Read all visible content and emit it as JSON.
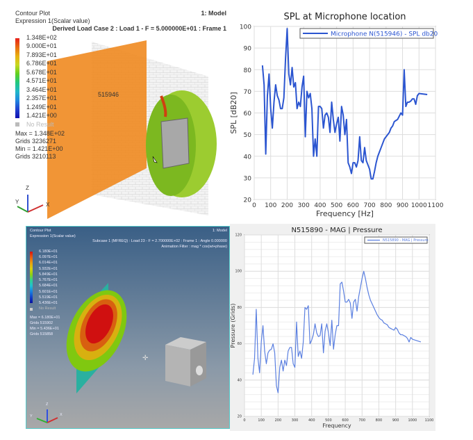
{
  "top_left": {
    "title": "Contour Plot",
    "model": "1: Model",
    "expression": "Expression 1(Scalar value)",
    "subcase": "Derived Load Case 2 : Load 1 - F = 5.000000E+01 : Frame 1",
    "legend": [
      "1.348E+02",
      "9.000E+01",
      "7.893E+01",
      "6.786E+01",
      "5.678E+01",
      "4.571E+01",
      "3.464E+01",
      "2.357E+01",
      "1.249E+01",
      "1.421E+00"
    ],
    "legend_colors": [
      "#e8201a",
      "#e86a10",
      "#e8b010",
      "#c8d820",
      "#60d020",
      "#20c880",
      "#20b8c8",
      "#2088e0",
      "#2040d0",
      "#1010b0"
    ],
    "no_result": "No Result",
    "max": "Max = 1.348E+02",
    "max_grid": "Grids 3236271",
    "min": "Min = 1.421E+00",
    "min_grid": "Grids 3210113",
    "node_label": "515946",
    "axes": {
      "z": "Z",
      "y": "Y",
      "x": "X"
    }
  },
  "bottom_left": {
    "title": "Contour Plot",
    "model": "1: Model",
    "expression": "Expression 1(Scalar value)",
    "subcase": "Subcase 1 (MFREQ) : Load 23 - F = 2.700000E+02 : Frame 1 : Angle 0.000000",
    "filter": "Animation Filter : mag * cos(wt+phase)",
    "legend": [
      "6.180E+01",
      "6.097E+01",
      "6.014E+01",
      "5.932E+01",
      "5.849E+01",
      "5.767E+01",
      "5.684E+01",
      "5.601E+01",
      "5.519E+01",
      "5.436E+01"
    ],
    "legend_colors": [
      "#d81010",
      "#e86010",
      "#e8a010",
      "#d8d010",
      "#90d010",
      "#30d090",
      "#20c0d0",
      "#1880e0",
      "#1040c8",
      "#0810a0"
    ],
    "no_result": "No Result",
    "max": "Max = 6.180E+01",
    "max_grid": "Grids 515902",
    "min": "Min = 5.436E+01",
    "min_grid": "Grids 515858",
    "axes": {
      "z": "Z",
      "y": "Y",
      "x": "X"
    }
  },
  "chart_data": [
    {
      "type": "line",
      "title": "SPL at Microphone location",
      "xlabel": "Frequency [Hz]",
      "ylabel": "SPL [dB20]",
      "xlim": [
        0,
        1100
      ],
      "ylim": [
        20,
        100
      ],
      "xticks": [
        0,
        100,
        200,
        300,
        400,
        500,
        600,
        700,
        800,
        900,
        1000,
        1100
      ],
      "yticks": [
        20,
        30,
        40,
        50,
        60,
        70,
        80,
        90,
        100
      ],
      "grid": true,
      "legend_position": "top-right",
      "color": "#2b55d0",
      "series": [
        {
          "name": "Microphone N(515946) - SPL db20",
          "x": [
            50,
            60,
            70,
            80,
            90,
            100,
            110,
            120,
            130,
            140,
            150,
            160,
            170,
            180,
            190,
            200,
            210,
            220,
            230,
            240,
            250,
            260,
            270,
            280,
            290,
            300,
            310,
            320,
            330,
            340,
            350,
            360,
            370,
            380,
            390,
            400,
            410,
            420,
            430,
            440,
            450,
            460,
            470,
            480,
            490,
            500,
            510,
            520,
            530,
            540,
            550,
            560,
            570,
            580,
            590,
            600,
            610,
            620,
            630,
            640,
            650,
            660,
            670,
            680,
            690,
            700,
            710,
            720,
            730,
            740,
            750,
            760,
            770,
            780,
            790,
            800,
            810,
            820,
            830,
            840,
            850,
            860,
            870,
            880,
            890,
            900,
            910,
            920,
            930,
            940,
            950,
            960,
            970,
            980,
            990,
            1000,
            1050
          ],
          "y": [
            82,
            73,
            41,
            68,
            78,
            62,
            53,
            65,
            73,
            68,
            66,
            62,
            62,
            67,
            85,
            99,
            78,
            73,
            81,
            72,
            74,
            62,
            65,
            63,
            72,
            77,
            49,
            70,
            67,
            69,
            62,
            40,
            48,
            40,
            63,
            63,
            62,
            53,
            59,
            60,
            58,
            51,
            65,
            57,
            51,
            55,
            58,
            47,
            63,
            59,
            50,
            57,
            37,
            35,
            32,
            37,
            37,
            35,
            38,
            49,
            38,
            37,
            44,
            38,
            36,
            34,
            29.5,
            29.5,
            33,
            37,
            40,
            42,
            44,
            46,
            48,
            49,
            50,
            51,
            53,
            54,
            56,
            56.5,
            57,
            58.5,
            60,
            59,
            80,
            63,
            65,
            65,
            65.5,
            66.5,
            66.5,
            64,
            68,
            69,
            68.5
          ]
        }
      ]
    },
    {
      "type": "line",
      "title": "N515890 - MAG | Pressure",
      "xlabel": "Frequency",
      "ylabel": "Pressure (Grids)",
      "xlim": [
        0,
        1100
      ],
      "ylim": [
        20,
        120
      ],
      "xticks": [
        0,
        100,
        200,
        300,
        400,
        500,
        600,
        700,
        800,
        900,
        1000,
        1100
      ],
      "yticks": [
        20,
        40,
        60,
        80,
        100,
        120
      ],
      "grid": true,
      "legend_position": "top-right",
      "color": "#5a7fe0",
      "series": [
        {
          "name": "N515890 - MAG | Pressure",
          "x": [
            50,
            60,
            70,
            80,
            90,
            100,
            110,
            120,
            130,
            140,
            150,
            160,
            170,
            180,
            190,
            200,
            210,
            220,
            230,
            240,
            250,
            260,
            270,
            280,
            290,
            300,
            310,
            320,
            330,
            340,
            350,
            360,
            370,
            380,
            390,
            400,
            410,
            420,
            430,
            440,
            450,
            460,
            470,
            480,
            490,
            500,
            510,
            520,
            530,
            540,
            550,
            560,
            570,
            580,
            590,
            600,
            610,
            620,
            630,
            640,
            650,
            660,
            670,
            680,
            690,
            700,
            710,
            720,
            730,
            740,
            750,
            760,
            770,
            780,
            790,
            800,
            810,
            820,
            830,
            840,
            850,
            860,
            870,
            880,
            890,
            900,
            910,
            920,
            930,
            940,
            950,
            960,
            970,
            980,
            990,
            1000,
            1050
          ],
          "y": [
            43,
            52,
            79,
            52,
            44,
            61,
            70,
            56,
            49,
            55,
            56.5,
            57,
            60,
            55,
            37,
            33,
            47,
            51,
            45,
            51,
            48,
            56,
            58,
            58,
            49,
            47,
            72,
            53,
            56,
            52,
            61,
            80,
            79,
            81,
            60,
            62,
            65,
            71,
            66,
            64,
            64.5,
            71,
            55,
            67,
            71,
            66,
            59,
            73,
            57,
            65,
            70,
            70,
            93,
            94,
            89,
            83,
            83,
            84.5,
            82.5,
            74,
            83,
            84.5,
            78,
            86,
            91,
            96,
            100,
            96,
            91,
            87,
            84,
            82,
            80,
            78,
            76,
            74.5,
            73.5,
            73,
            71.5,
            71,
            70.5,
            69,
            68.5,
            68,
            67.5,
            69,
            68,
            66,
            65,
            65,
            64.5,
            64,
            63,
            61,
            63.5,
            62.5,
            61
          ]
        }
      ]
    }
  ]
}
